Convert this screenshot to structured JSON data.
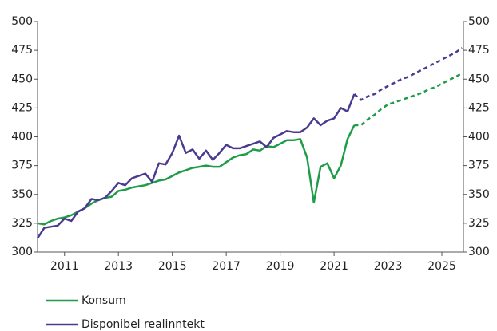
{
  "chart_data": {
    "type": "line",
    "x": [
      2010,
      2010.25,
      2010.5,
      2010.75,
      2011,
      2011.25,
      2011.5,
      2011.75,
      2012,
      2012.25,
      2012.5,
      2012.75,
      2013,
      2013.25,
      2013.5,
      2013.75,
      2014,
      2014.25,
      2014.5,
      2014.75,
      2015,
      2015.25,
      2015.5,
      2015.75,
      2016,
      2016.25,
      2016.5,
      2016.75,
      2017,
      2017.25,
      2017.5,
      2017.75,
      2018,
      2018.25,
      2018.5,
      2018.75,
      2019,
      2019.25,
      2019.5,
      2019.75,
      2020,
      2020.25,
      2020.5,
      2020.75,
      2021,
      2021.25,
      2021.5,
      2021.75,
      2022,
      2022.25,
      2022.5,
      2022.75,
      2023,
      2023.25,
      2023.5,
      2023.75,
      2024,
      2024.25,
      2024.5,
      2024.75,
      2025,
      2025.25,
      2025.5,
      2025.75
    ],
    "series": [
      {
        "name": "Konsum",
        "color": "#1e9c48",
        "values": [
          325,
          324,
          327,
          329,
          330,
          332,
          335,
          338,
          342,
          345,
          347,
          348,
          353,
          354,
          356,
          357,
          358,
          360,
          362,
          363,
          366,
          369,
          371,
          373,
          374,
          375,
          374,
          374,
          378,
          382,
          384,
          385,
          389,
          388,
          392,
          391,
          394,
          397,
          397,
          398,
          382,
          343,
          374,
          377,
          364,
          375,
          398,
          410,
          410,
          415,
          419,
          424,
          428,
          430,
          432,
          434,
          436,
          438,
          441,
          443,
          446,
          449,
          452,
          455
        ]
      },
      {
        "name": "Disponibel realinntekt",
        "color": "#4b3a8f",
        "values": [
          312,
          321,
          322,
          323,
          329,
          327,
          335,
          338,
          346,
          345,
          347,
          353,
          360,
          358,
          364,
          366,
          368,
          361,
          377,
          376,
          386,
          401,
          386,
          389,
          381,
          388,
          380,
          386,
          393,
          390,
          390,
          392,
          394,
          396,
          391,
          399,
          402,
          405,
          404,
          404,
          408,
          416,
          410,
          414,
          416,
          425,
          422,
          437,
          432,
          435,
          437,
          441,
          444,
          447,
          450,
          452,
          455,
          458,
          461,
          464,
          467,
          470,
          473,
          477
        ]
      }
    ],
    "forecast_from": 2021.75,
    "xlim": [
      2010,
      2025.8
    ],
    "xticks": [
      2011,
      2013,
      2015,
      2017,
      2019,
      2021,
      2023,
      2025
    ],
    "ylim": [
      300,
      500
    ],
    "yticks": [
      300,
      325,
      350,
      375,
      400,
      425,
      450,
      475,
      500
    ],
    "grid": false
  }
}
